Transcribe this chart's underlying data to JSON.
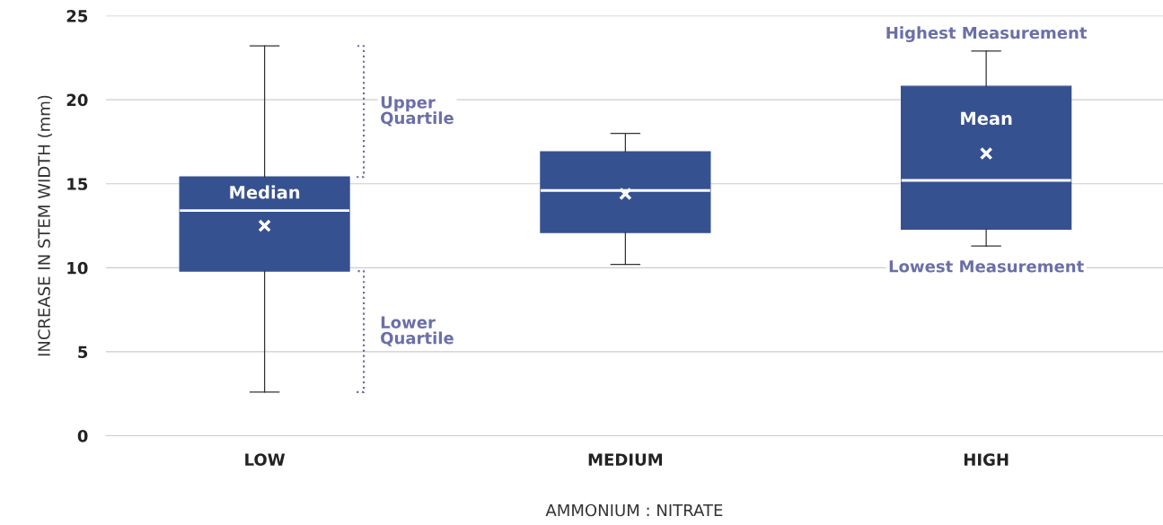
{
  "chart_data": {
    "type": "box",
    "xlabel": "AMMONIUM : NITRATE",
    "ylabel": "INCREASE IN STEM WIDTH (mm)",
    "categories": [
      "LOW",
      "MEDIUM",
      "HIGH"
    ],
    "color": "#36518f",
    "boxes": [
      {
        "low": 2.6,
        "q1": 9.8,
        "median": 13.4,
        "q3": 15.4,
        "high": 23.2,
        "mean": 12.5
      },
      {
        "low": 10.2,
        "q1": 12.1,
        "median": 14.6,
        "q3": 16.9,
        "high": 18.0,
        "mean": 14.4
      },
      {
        "low": 11.3,
        "q1": 12.3,
        "median": 15.2,
        "q3": 20.8,
        "high": 22.9,
        "mean": 16.8
      }
    ],
    "ylim": [
      0,
      25
    ],
    "yticks": [
      0,
      5,
      10,
      15,
      20,
      25
    ],
    "grid": "y",
    "annotations": [
      "Upper\nQuartile",
      "Lower\nQuartile",
      "Median",
      "Mean",
      "Highest Measurement",
      "Lowest Measurement"
    ]
  }
}
